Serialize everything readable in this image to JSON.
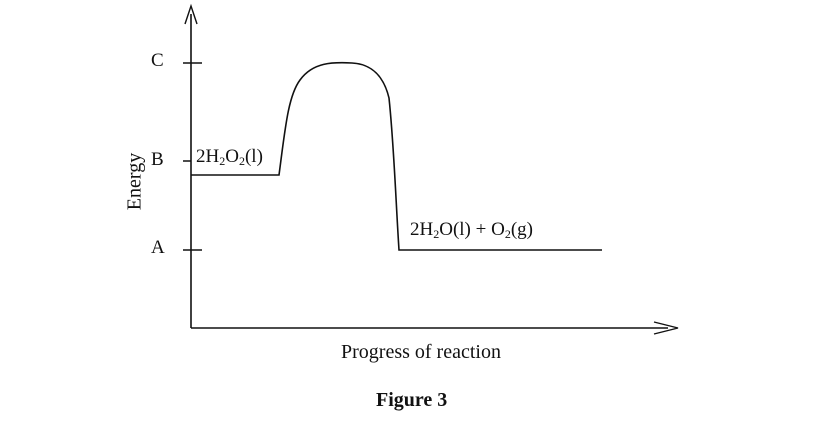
{
  "diagram": {
    "y_axis_label": "Energy",
    "energy_levels": {
      "C": "C",
      "B": "B",
      "A": "A"
    },
    "reactant": {
      "prefix": "2H",
      "sub1": "2",
      "mid": "O",
      "sub2": "2",
      "suffix": "(l)"
    },
    "products": {
      "prefix": "2H",
      "sub1": "2",
      "mid": "O(l) + O",
      "sub2": "2",
      "suffix": "(g)"
    },
    "x_axis_label": "Progress of reaction",
    "caption": "Figure 3"
  }
}
